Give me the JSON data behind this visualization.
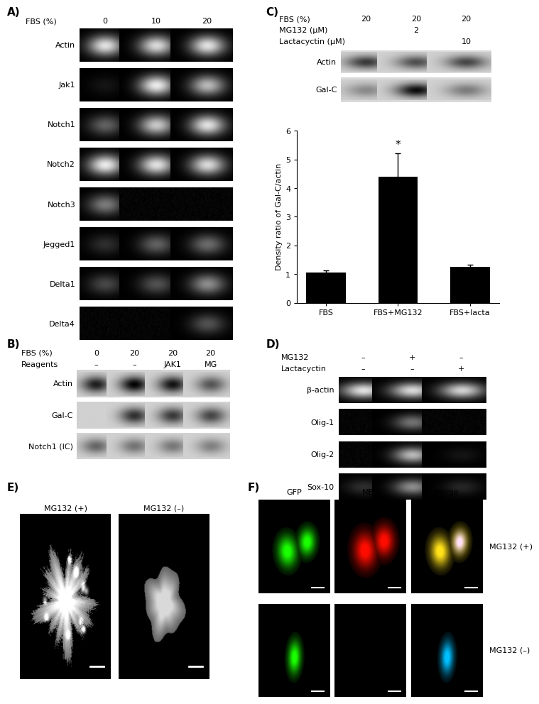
{
  "panel_A": {
    "label": "A)",
    "fbs_labels": [
      "FBS (%)",
      "0",
      "10",
      "20"
    ],
    "row_labels": [
      "Actin",
      "Jak1",
      "Notch1",
      "Notch2",
      "Notch3",
      "Jegged1",
      "Delta1",
      "Delta4"
    ],
    "band_intensities": {
      "Actin": [
        0.88,
        0.85,
        0.88
      ],
      "Jak1": [
        0.08,
        0.92,
        0.72
      ],
      "Notch1": [
        0.38,
        0.78,
        0.88
      ],
      "Notch2": [
        0.92,
        0.88,
        0.85
      ],
      "Notch3": [
        0.48,
        0.05,
        0.04
      ],
      "Jegged1": [
        0.18,
        0.38,
        0.42
      ],
      "Delta1": [
        0.28,
        0.32,
        0.55
      ],
      "Delta4": [
        0.04,
        0.05,
        0.32
      ]
    }
  },
  "panel_B": {
    "label": "B)",
    "fbs_labels": [
      "FBS (%)",
      "0",
      "20",
      "20",
      "20"
    ],
    "reagent_labels": [
      "Reagents",
      "–",
      "–",
      "JAK1",
      "MG"
    ],
    "row_labels": [
      "Actin",
      "Gal-C",
      "Notch1 (IC)"
    ],
    "band_intensities": {
      "Actin": [
        0.8,
        0.92,
        0.85,
        0.55
      ],
      "Gal-C": [
        0.05,
        0.72,
        0.68,
        0.62
      ],
      "Notch1 (IC)": [
        0.48,
        0.42,
        0.4,
        0.36
      ]
    }
  },
  "panel_C": {
    "label": "C)",
    "fbs_labels": [
      "FBS (%)",
      "20",
      "20",
      "20"
    ],
    "mg132_labels": [
      "MG132 (μM)",
      "",
      "2",
      ""
    ],
    "lacta_labels": [
      "Lactacyctin (μM)",
      "",
      "",
      "10"
    ],
    "wb_labels": [
      "Actin",
      "Gal-C"
    ],
    "actin_intensities": [
      0.68,
      0.58,
      0.62
    ],
    "galc_intensities": [
      0.32,
      0.88,
      0.38
    ],
    "bar_categories": [
      "FBS",
      "FBS+MG132",
      "FBS+lacta"
    ],
    "bar_values": [
      1.05,
      4.4,
      1.25
    ],
    "bar_errors": [
      0.08,
      0.8,
      0.07
    ],
    "bar_color": "#000000",
    "ylabel": "Density ratio of Gal-C/actin",
    "ylim": [
      0,
      6
    ],
    "yticks": [
      0,
      1,
      2,
      3,
      4,
      5,
      6
    ],
    "star_label": "*"
  },
  "panel_D": {
    "label": "D)",
    "mg132_labels": [
      "MG132",
      "–",
      "+",
      "–"
    ],
    "lacta_labels": [
      "Lactacyctin",
      "–",
      "–",
      "+"
    ],
    "row_labels": [
      "β-actin",
      "Olig-1",
      "Olig-2",
      "Sox-10"
    ],
    "band_intensities": {
      "β-actin": [
        0.88,
        0.85,
        0.82
      ],
      "Olig-1": [
        0.04,
        0.45,
        0.04
      ],
      "Olig-2": [
        0.05,
        0.72,
        0.08
      ],
      "Sox-10": [
        0.18,
        0.55,
        0.15
      ]
    }
  },
  "panel_E": {
    "label": "E)",
    "titles": [
      "MG132 (+)",
      "MG132 (–)"
    ]
  },
  "panel_F": {
    "label": "F)",
    "col_labels": [
      "GFP",
      "MBP",
      "Merge"
    ],
    "row_labels": [
      "MG132 (+)",
      "MG132 (–)"
    ]
  }
}
